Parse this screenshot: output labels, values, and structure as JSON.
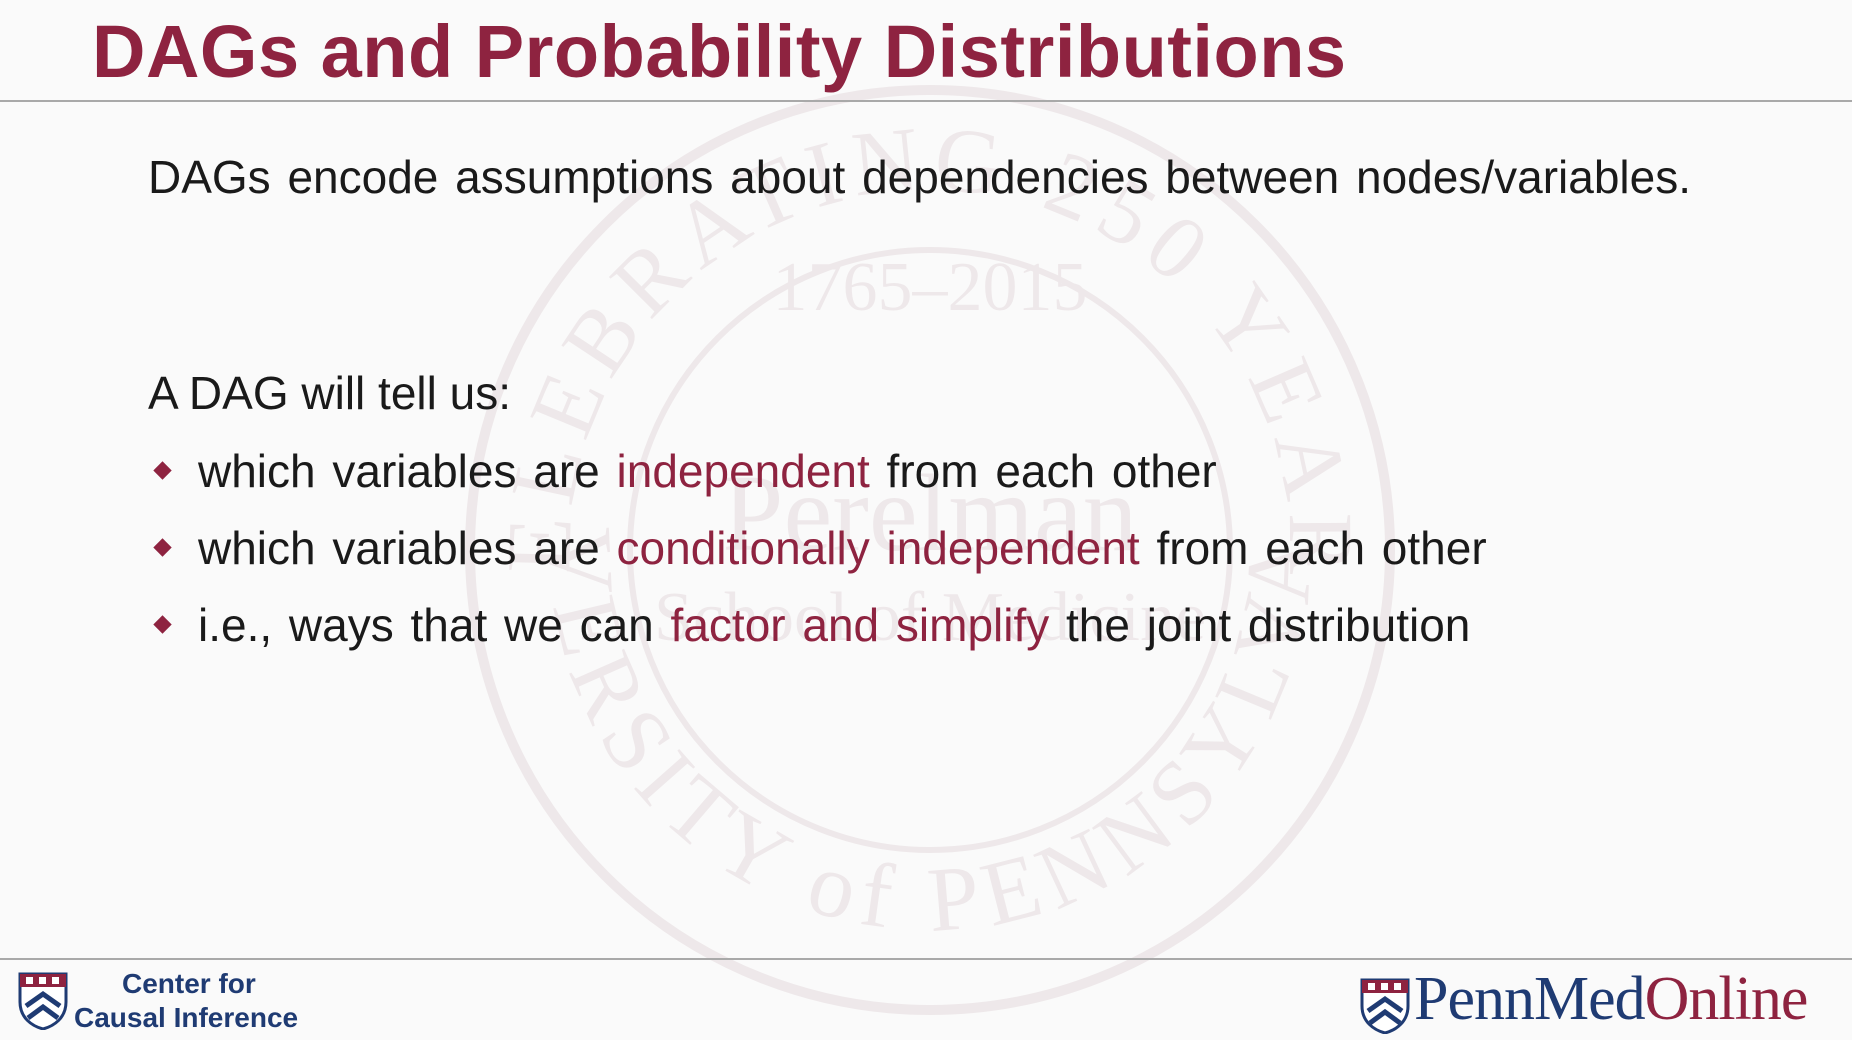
{
  "slide": {
    "title": "DAGs and Probability Distributions",
    "intro": "DAGs encode assumptions about dependencies between nodes/variables.",
    "lead": "A DAG will tell us:",
    "bullets": [
      {
        "before": "which variables are ",
        "highlight": "independent",
        "after": " from each other"
      },
      {
        "before": "which variables are ",
        "highlight": "conditionally independent",
        "after": " from each other"
      },
      {
        "before": "i.e., ways that we can ",
        "highlight": "factor and simplify",
        "after": " the joint distribution"
      }
    ]
  },
  "watermark": {
    "arc_top": "CELEBRATING 250 YEARS",
    "years": "1765–2015",
    "center_1": "Perelman",
    "center_2": "School of Medicine",
    "arc_bottom": "UNIVERSITY of PENNSYLVANIA"
  },
  "footer": {
    "left_line1": "Center for",
    "left_line2": "Causal Inference",
    "brand_part1": "PennMed",
    "brand_part2": "Online"
  },
  "colors": {
    "accent": "#8e2340",
    "navy": "#1f3b73",
    "text": "#1a1a1a"
  },
  "icons": {
    "bullet": "diamond-bullet-icon",
    "logo_left": "penn-shield-icon",
    "logo_right": "penn-shield-icon"
  }
}
